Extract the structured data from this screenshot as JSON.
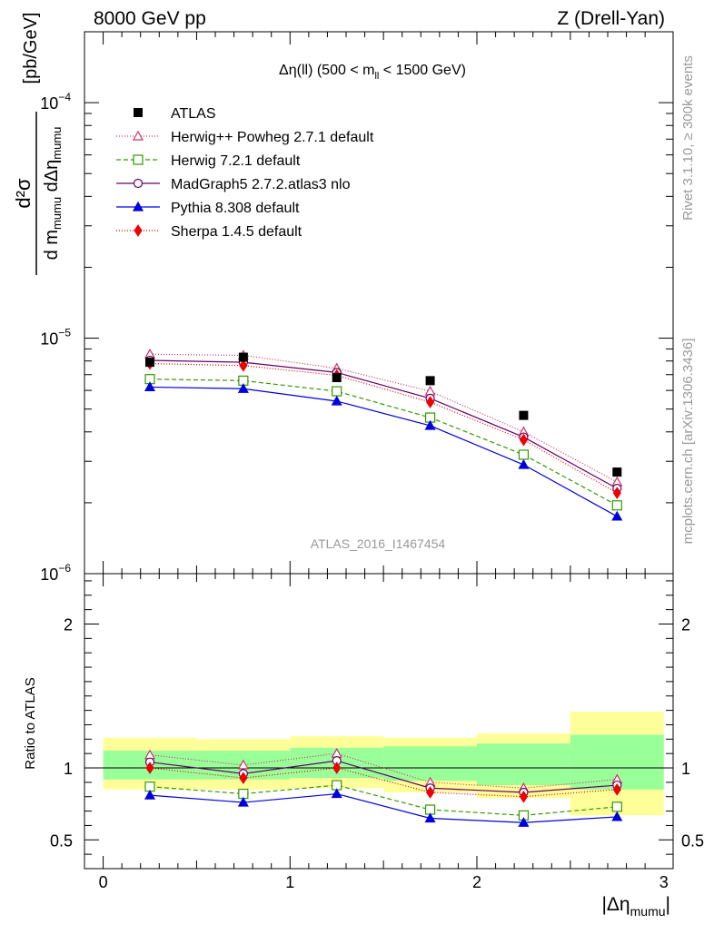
{
  "header": {
    "left": "8000 GeV pp",
    "right": "Z (Drell-Yan)"
  },
  "side_labels": {
    "rivet": "Rivet 3.1.10, ≥ 300k events",
    "mcplots": "mcplots.cern.ch [arXiv:1306.3436]"
  },
  "watermark": "ATLAS_2016_I1467454",
  "chart_data": [
    {
      "id": "main",
      "type": "line",
      "title_prefix": "Δη(ll) (500 < m",
      "title_sub": "ll",
      "title_suffix": " < 1500 GeV)",
      "ylabel": {
        "numerator": "d²σ",
        "den_a": "d m",
        "den_a_sub": "mumu",
        "den_b": " dΔη",
        "den_b_sub": "mumu",
        "units": "[pb/GeV]"
      },
      "yscale": "log",
      "ylim": [
        1e-06,
        0.0002
      ],
      "xlim": [
        -0.1,
        3.05
      ],
      "ytick_labels": [
        {
          "base": "10",
          "exp": "−6",
          "value": 1e-06
        },
        {
          "base": "10",
          "exp": "−5",
          "value": 1e-05
        },
        {
          "base": "10",
          "exp": "−4",
          "value": 0.0001
        }
      ],
      "x": [
        0.25,
        0.75,
        1.25,
        1.75,
        2.25,
        2.75
      ],
      "data": {
        "name": "ATLAS",
        "values": [
          7.9e-06,
          8.3e-06,
          6.8e-06,
          6.6e-06,
          4.7e-06,
          2.7e-06
        ],
        "color": "#000000"
      },
      "series": [
        {
          "name": "Herwig++ Powheg 2.7.1 default",
          "values": [
            8.55e-06,
            8.45e-06,
            7.45e-06,
            5.95e-06,
            4e-06,
            2.45e-06
          ],
          "color": "#cc3366",
          "dash": "1,2",
          "marker": "triangle-open"
        },
        {
          "name": "Herwig 7.2.1 default",
          "values": [
            6.7e-06,
            6.6e-06,
            5.95e-06,
            4.6e-06,
            3.2e-06,
            1.95e-06
          ],
          "color": "#339900",
          "dash": "5,3",
          "marker": "square-open"
        },
        {
          "name": "MadGraph5 2.7.2.atlas3 nlo",
          "values": [
            8.05e-06,
            7.9e-06,
            7.15e-06,
            5.55e-06,
            3.8e-06,
            2.3e-06
          ],
          "color": "#660066",
          "dash": "",
          "marker": "circle-open"
        },
        {
          "name": "Pythia 8.308 default",
          "values": [
            6.2e-06,
            6.1e-06,
            5.4e-06,
            4.25e-06,
            2.9e-06,
            1.75e-06
          ],
          "color": "#0000dd",
          "dash": "",
          "marker": "triangle-filled"
        },
        {
          "name": "Sherpa 1.4.5 default",
          "values": [
            7.8e-06,
            7.65e-06,
            6.95e-06,
            5.35e-06,
            3.7e-06,
            2.2e-06
          ],
          "color": "#ee0000",
          "dash": "1,2",
          "marker": "diamond-filled"
        }
      ]
    },
    {
      "id": "ratio",
      "type": "line",
      "ylabel": "Ratio to ATLAS",
      "xlabel": "|Δη",
      "xlabel_sub": "mumu",
      "xlabel_suffix": "|",
      "ylim": [
        0.3,
        2.35
      ],
      "xlim": [
        -0.1,
        3.05
      ],
      "yticks": [
        0.5,
        1,
        2
      ],
      "ytick_labels": [
        "0.5",
        "1",
        "2"
      ],
      "xticks": [
        0,
        1,
        2,
        3
      ],
      "xtick_labels": [
        "0",
        "1",
        "2",
        "3"
      ],
      "bins": [
        [
          0,
          0.5
        ],
        [
          0.5,
          1
        ],
        [
          1,
          1.5
        ],
        [
          1.5,
          2
        ],
        [
          2,
          2.5
        ],
        [
          2.5,
          3
        ]
      ],
      "band_stat_sys": [
        [
          0.85,
          1.21
        ],
        [
          0.85,
          1.2
        ],
        [
          0.86,
          1.22
        ],
        [
          0.83,
          1.21
        ],
        [
          0.79,
          1.24
        ],
        [
          0.67,
          1.39
        ]
      ],
      "band_stat": [
        [
          0.92,
          1.12
        ],
        [
          0.92,
          1.12
        ],
        [
          0.93,
          1.14
        ],
        [
          0.91,
          1.15
        ],
        [
          0.88,
          1.17
        ],
        [
          0.85,
          1.23
        ]
      ],
      "x": [
        0.25,
        0.75,
        1.25,
        1.75,
        2.25,
        2.75
      ],
      "series": [
        {
          "name": "Herwig++ Powheg 2.7.1 default",
          "values": [
            1.09,
            1.02,
            1.1,
            0.9,
            0.86,
            0.92
          ]
        },
        {
          "name": "Herwig 7.2.1 default",
          "values": [
            0.87,
            0.82,
            0.88,
            0.71,
            0.67,
            0.73
          ]
        },
        {
          "name": "MadGraph5 2.7.2.atlas3 nlo",
          "values": [
            1.04,
            0.96,
            1.05,
            0.86,
            0.83,
            0.88
          ]
        },
        {
          "name": "Pythia 8.308 default",
          "values": [
            0.81,
            0.76,
            0.82,
            0.65,
            0.62,
            0.66
          ]
        },
        {
          "name": "Sherpa 1.4.5 default",
          "values": [
            1.0,
            0.93,
            1.0,
            0.83,
            0.8,
            0.85
          ]
        }
      ],
      "band_colors": {
        "stat_sys": "#ffff99",
        "stat": "#99ff99"
      }
    }
  ]
}
